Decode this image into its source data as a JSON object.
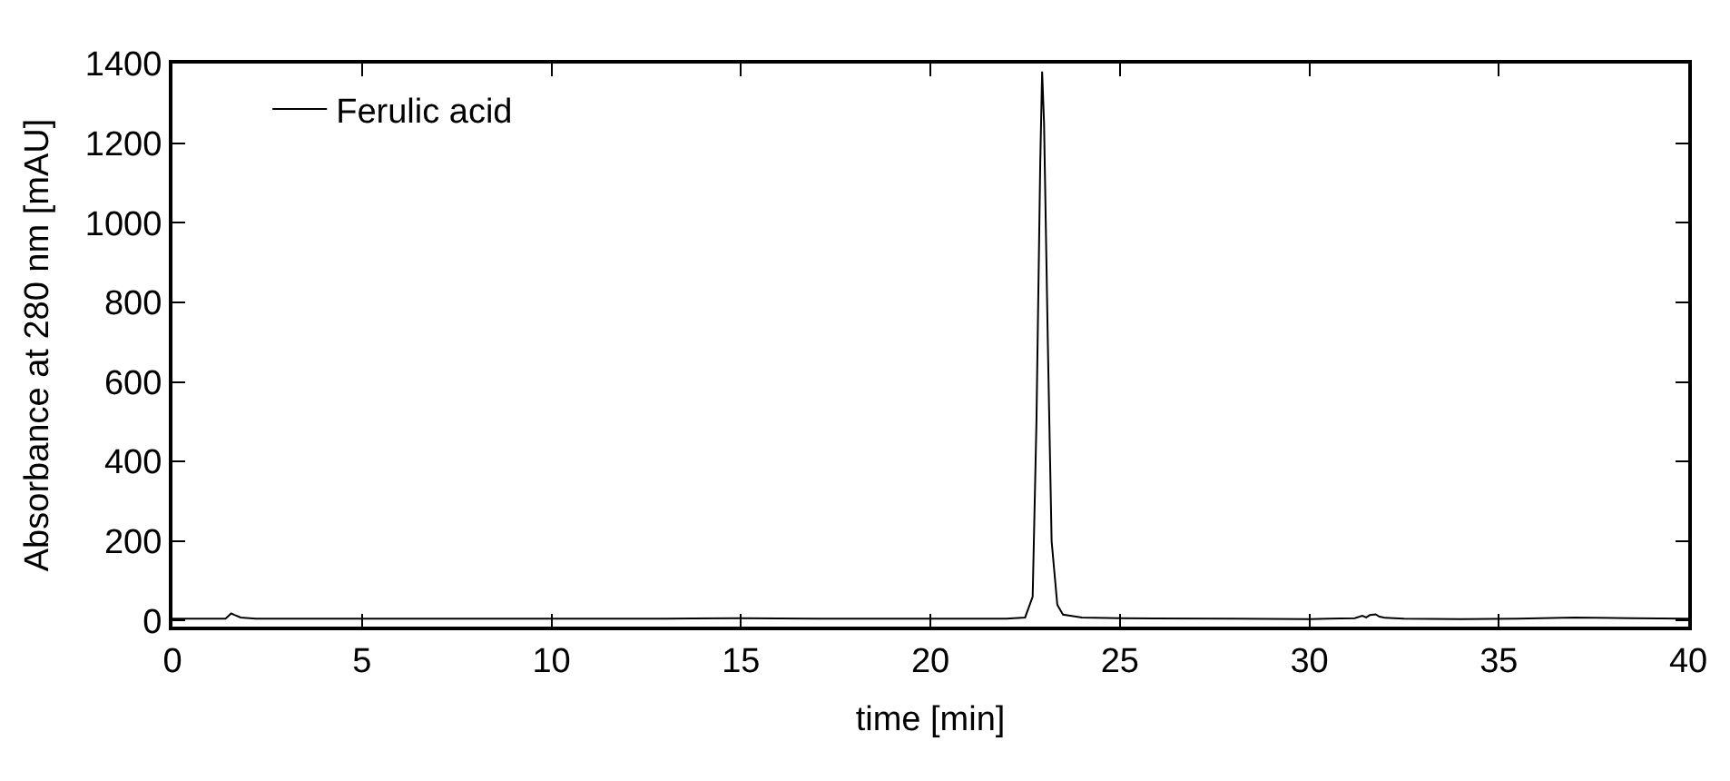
{
  "chart_data": {
    "type": "line",
    "xlabel": "time [min]",
    "ylabel": "Absorbance at 280 nm [mAU]",
    "xlim": [
      0,
      40
    ],
    "xticks": [
      0,
      5,
      10,
      15,
      20,
      25,
      30,
      35,
      40
    ],
    "ylim": [
      -15,
      1400
    ],
    "yticks": [
      0,
      200,
      400,
      600,
      800,
      1000,
      1200,
      1400
    ],
    "legend": "top left",
    "marker": "none",
    "line_style": "solid",
    "series": [
      {
        "name": "Ferulic acid",
        "color": "#000000",
        "x": [
          0.0,
          1.4,
          1.55,
          1.65,
          1.8,
          2.2,
          5,
          10,
          13,
          15,
          17,
          20,
          21,
          22,
          22.5,
          22.7,
          22.8,
          22.9,
          22.95,
          23.0,
          23.1,
          23.2,
          23.35,
          23.5,
          24,
          25,
          28,
          30,
          30.5,
          31.2,
          31.4,
          31.5,
          31.6,
          31.75,
          31.85,
          32.0,
          32.5,
          34,
          35.5,
          37,
          38.5,
          40
        ],
        "values": [
          5,
          5,
          18,
          14,
          8,
          5,
          5,
          5,
          5,
          6,
          5,
          5,
          5,
          5,
          8,
          60,
          500,
          1150,
          1380,
          1250,
          700,
          200,
          40,
          15,
          8,
          6,
          5,
          4,
          5,
          6,
          12,
          8,
          14,
          16,
          10,
          7,
          5,
          4,
          5,
          8,
          6,
          5
        ]
      }
    ]
  }
}
